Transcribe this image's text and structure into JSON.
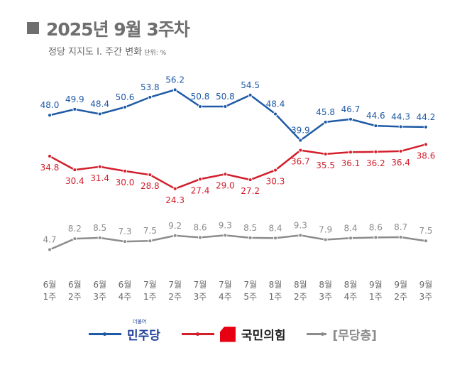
{
  "header": {
    "title": "2025년 9월 3주차",
    "subtitle": "정당 지지도 Ⅰ. 주간 변화",
    "unit": "단위: %"
  },
  "chart_data": {
    "type": "line",
    "categories": [
      [
        "6월",
        "1주"
      ],
      [
        "6월",
        "2주"
      ],
      [
        "6월",
        "3주"
      ],
      [
        "6월",
        "4주"
      ],
      [
        "7월",
        "1주"
      ],
      [
        "7월",
        "2주"
      ],
      [
        "7월",
        "3주"
      ],
      [
        "7월",
        "4주"
      ],
      [
        "7월",
        "5주"
      ],
      [
        "8월",
        "1주"
      ],
      [
        "8월",
        "2주"
      ],
      [
        "8월",
        "3주"
      ],
      [
        "8월",
        "4주"
      ],
      [
        "9월",
        "1주"
      ],
      [
        "9월",
        "2주"
      ],
      [
        "9월",
        "3주"
      ]
    ],
    "series": [
      {
        "name": "민주당",
        "color": "#1f5aa6",
        "label_pos": "above",
        "values": [
          48.0,
          49.9,
          48.4,
          50.6,
          53.8,
          56.2,
          50.8,
          50.8,
          54.5,
          48.4,
          39.9,
          45.8,
          46.7,
          44.6,
          44.3,
          44.2
        ]
      },
      {
        "name": "국민의힘",
        "color": "#d21f2b",
        "label_pos": "below",
        "values": [
          34.8,
          30.4,
          31.4,
          30.0,
          28.8,
          24.3,
          27.4,
          29.0,
          27.2,
          30.3,
          36.7,
          35.5,
          36.1,
          36.2,
          36.4,
          38.6
        ]
      },
      {
        "name": "[무당층]",
        "color": "#8c8c8c",
        "label_pos": "above",
        "values": [
          4.7,
          8.2,
          8.5,
          7.3,
          7.5,
          9.2,
          8.6,
          9.3,
          8.5,
          8.4,
          9.3,
          7.9,
          8.4,
          8.6,
          8.7,
          7.5
        ]
      }
    ],
    "ylim": [
      0,
      60
    ],
    "grid": false,
    "legend": "bottom"
  },
  "legend": {
    "items": [
      {
        "label": "민주당",
        "tagline": "더불어",
        "color": "#1f5aa6"
      },
      {
        "label": "국민의힘",
        "color": "#d21f2b"
      },
      {
        "label": "[무당층]",
        "color": "#8c8c8c"
      }
    ]
  }
}
